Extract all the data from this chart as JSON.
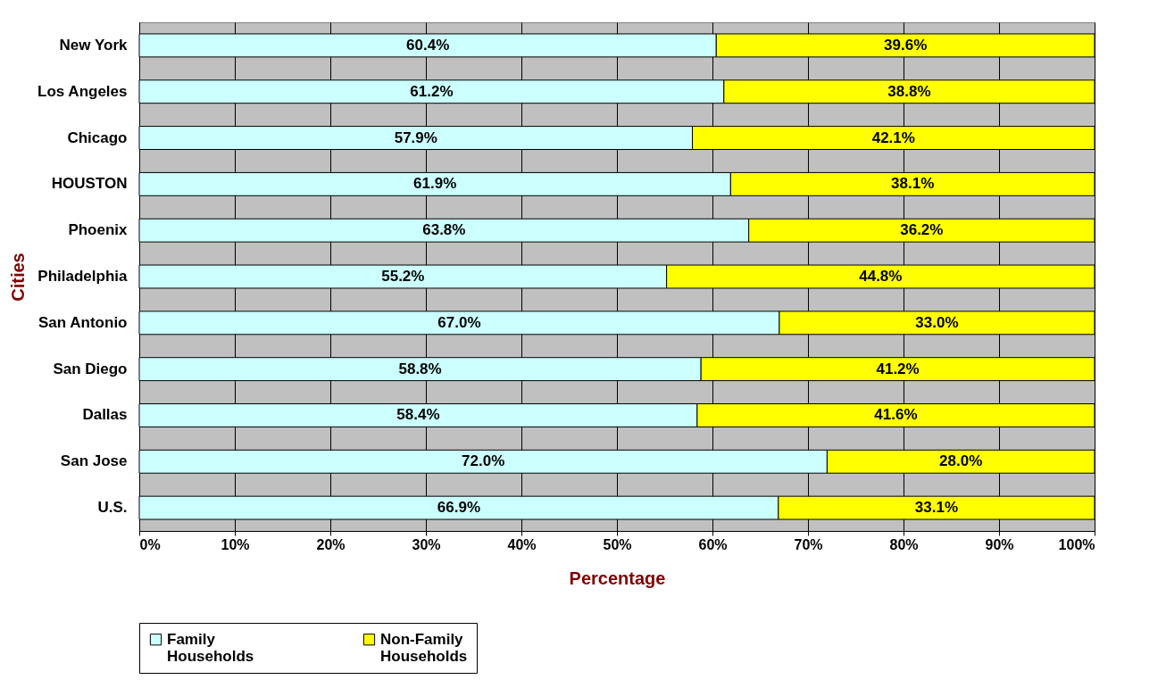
{
  "chart_data": {
    "type": "bar",
    "orientation": "horizontal",
    "stacked": true,
    "xlabel": "Percentage",
    "ylabel": "Cities",
    "categories": [
      "New York",
      "Los Angeles",
      "Chicago",
      "HOUSTON",
      "Phoenix",
      "Philadelphia",
      "San Antonio",
      "San Diego",
      "Dallas",
      "San Jose",
      "U.S."
    ],
    "series": [
      {
        "name": "Family Households",
        "color": "#ccffff",
        "values": [
          60.4,
          61.2,
          57.9,
          61.9,
          63.8,
          55.2,
          67.0,
          58.8,
          58.4,
          72.0,
          66.9
        ],
        "value_labels": [
          "60.4%",
          "61.2%",
          "57.9%",
          "61.9%",
          "63.8%",
          "55.2%",
          "67.0%",
          "58.8%",
          "58.4%",
          "72.0%",
          "66.9%"
        ]
      },
      {
        "name": "Non-Family Households",
        "color": "#ffff00",
        "values": [
          39.6,
          38.8,
          42.1,
          38.1,
          36.2,
          44.8,
          33.0,
          41.2,
          41.6,
          28.0,
          33.1
        ],
        "value_labels": [
          "39.6%",
          "38.8%",
          "42.1%",
          "38.1%",
          "36.2%",
          "44.8%",
          "33.0%",
          "41.2%",
          "41.6%",
          "28.0%",
          "33.1%"
        ]
      }
    ],
    "xlim": [
      0,
      100
    ],
    "xticks": [
      {
        "value": 0,
        "label": "0%"
      },
      {
        "value": 10,
        "label": "10%"
      },
      {
        "value": 20,
        "label": "20%"
      },
      {
        "value": 30,
        "label": "30%"
      },
      {
        "value": 40,
        "label": "40%"
      },
      {
        "value": 50,
        "label": "50%"
      },
      {
        "value": 60,
        "label": "60%"
      },
      {
        "value": 70,
        "label": "70%"
      },
      {
        "value": 80,
        "label": "80%"
      },
      {
        "value": 90,
        "label": "90%"
      },
      {
        "value": 100,
        "label": "100%"
      }
    ],
    "grid": "x",
    "legend": "bottom"
  }
}
